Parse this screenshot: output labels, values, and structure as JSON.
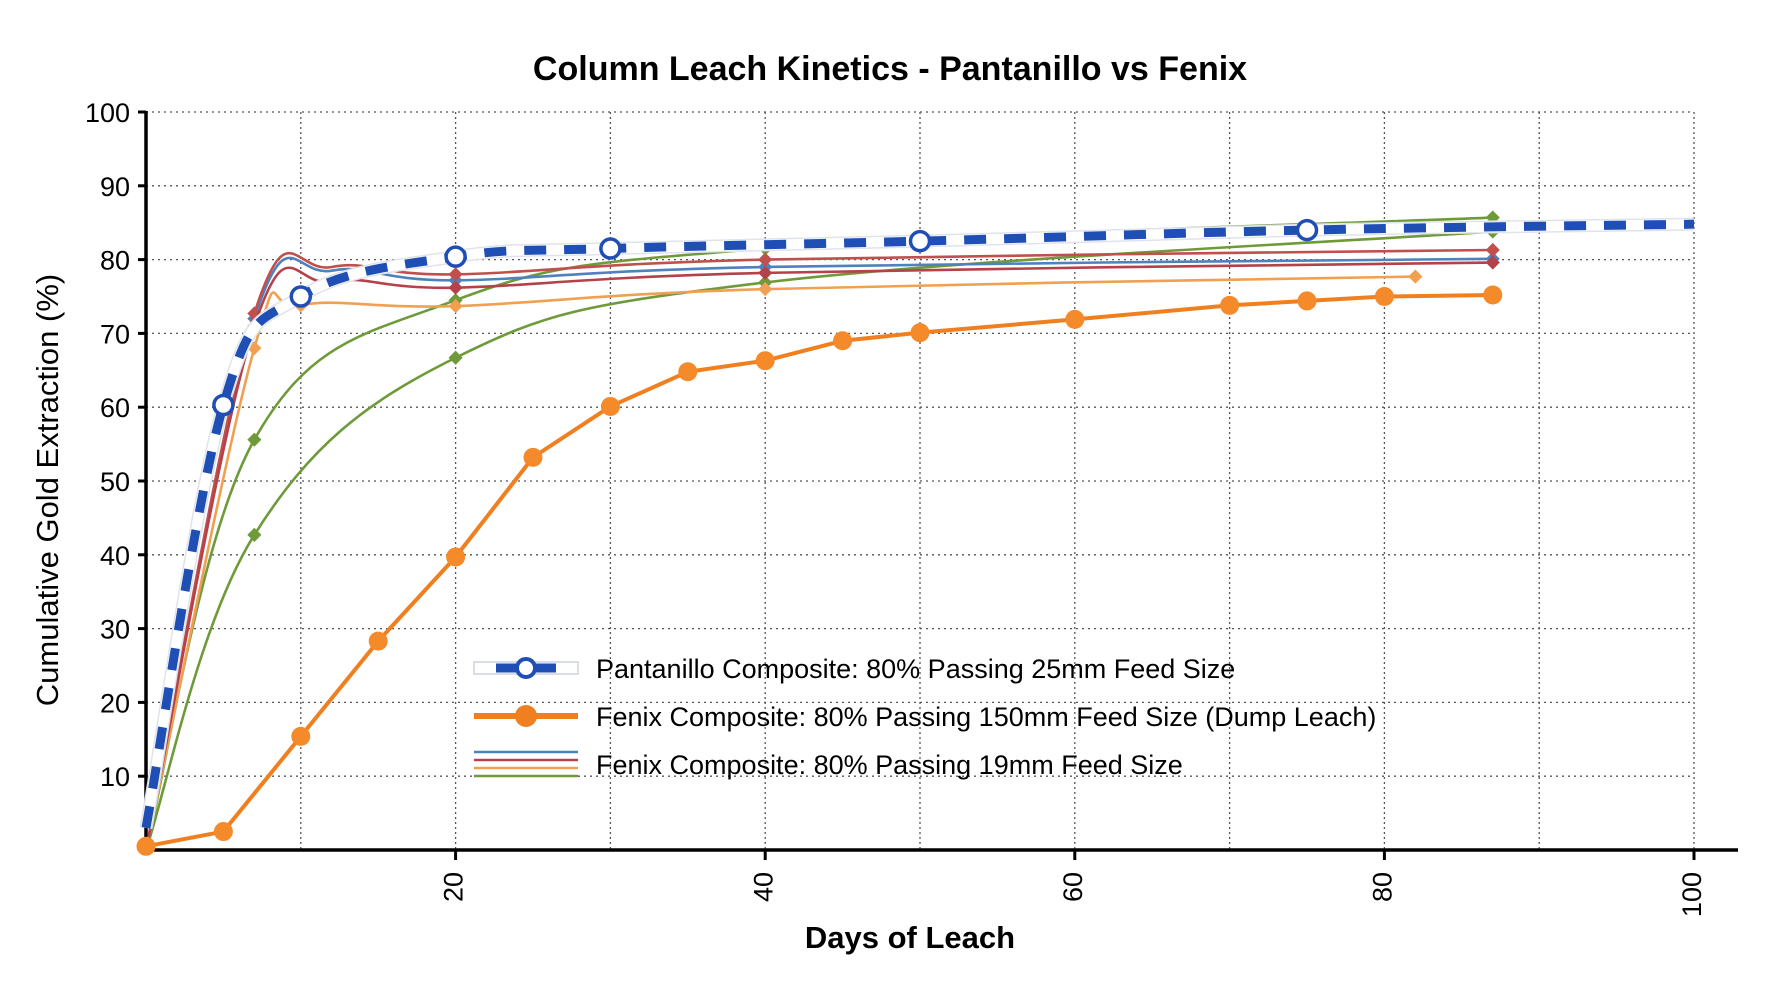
{
  "chart_data": {
    "type": "line",
    "title": "Column Leach Kinetics - Pantanillo vs Fenix",
    "xlabel": "Days of Leach",
    "ylabel": "Cumulative Gold Extraction (%)",
    "xlim": [
      0,
      100
    ],
    "ylim": [
      0,
      100
    ],
    "xticks": [
      20,
      40,
      60,
      80,
      100
    ],
    "yticks": [
      10,
      20,
      30,
      40,
      50,
      60,
      70,
      80,
      90,
      100
    ],
    "x_gridlines": [
      10,
      20,
      30,
      40,
      50,
      60,
      70,
      80,
      90,
      100
    ],
    "grid": true,
    "legend_position": "bottom-center",
    "series": [
      {
        "name": "Fenix Composite: 80% Passing 19mm Feed Size",
        "id": "fenix-19mm-green-a",
        "color": "#6f9a3a",
        "style": "thin",
        "x": [
          0,
          7,
          20,
          40,
          87
        ],
        "y": [
          0,
          55.6,
          74.5,
          81.5,
          85.7
        ]
      },
      {
        "name": "Fenix Composite: 80% Passing 19mm Feed Size",
        "id": "fenix-19mm-green-b",
        "color": "#6f9a3a",
        "style": "thin",
        "x": [
          0,
          7,
          20,
          40,
          87
        ],
        "y": [
          0,
          42.7,
          66.7,
          76.9,
          83.8
        ]
      },
      {
        "name": "Fenix Composite: 80% Passing 19mm Feed Size",
        "id": "fenix-19mm-orange",
        "color": "#f0a050",
        "style": "thin",
        "x": [
          0,
          7,
          10,
          20,
          40,
          82
        ],
        "y": [
          0,
          68,
          73.8,
          73.7,
          76,
          77.7
        ]
      },
      {
        "name": "Fenix Composite: 80% Passing 19mm Feed Size",
        "id": "fenix-19mm-blue",
        "color": "#4f81bd",
        "style": "thin",
        "x": [
          0,
          7,
          12,
          20,
          40,
          87
        ],
        "y": [
          0,
          72,
          78.5,
          77.2,
          79,
          80.1
        ]
      },
      {
        "name": "Fenix Composite: 80% Passing 19mm Feed Size",
        "id": "fenix-19mm-red-a",
        "color": "#c0504d",
        "style": "thin",
        "x": [
          0,
          7,
          12,
          20,
          40,
          87
        ],
        "y": [
          0,
          72.7,
          79,
          78,
          80,
          81.3
        ]
      },
      {
        "name": "Fenix Composite: 80% Passing 19mm Feed Size",
        "id": "fenix-19mm-red-b",
        "color": "#b5424a",
        "style": "thin",
        "x": [
          0,
          7,
          12,
          20,
          40,
          87
        ],
        "y": [
          0,
          71,
          77,
          76.2,
          78.2,
          79.6
        ]
      },
      {
        "name": "Fenix Composite: 80% Passing 150mm Feed Size (Dump Leach)",
        "id": "fenix-150mm",
        "color": "#f07f20",
        "style": "thick-markers",
        "x": [
          0,
          5,
          10,
          15,
          20,
          25,
          30,
          35,
          40,
          45,
          50,
          60,
          70,
          75,
          80,
          87
        ],
        "y": [
          0.5,
          2.5,
          15.4,
          28.3,
          39.7,
          53.2,
          60.1,
          64.8,
          66.3,
          69,
          70.1,
          71.9,
          73.8,
          74.4,
          75,
          75.2
        ]
      },
      {
        "name": "Pantanillo Composite: 80% Passing 25mm Feed Size",
        "id": "pantanillo-25mm",
        "color": "#1f4eb4",
        "style": "dashed-open-circles",
        "x": [
          0,
          5,
          10,
          20,
          30,
          50,
          75,
          100
        ],
        "y": [
          3,
          60.3,
          75,
          80.4,
          81.5,
          82.5,
          84,
          84.8
        ],
        "marker_x": [
          5,
          10,
          20,
          30,
          50,
          75
        ]
      }
    ],
    "legend": [
      {
        "label": "Pantanillo Composite: 80% Passing 25mm Feed Size",
        "swatch": "dashed-open-circle",
        "color": "#1f4eb4"
      },
      {
        "label": "Fenix Composite: 80% Passing 150mm Feed Size (Dump Leach)",
        "swatch": "line-filled-circle",
        "color": "#f07f20"
      },
      {
        "label": "Fenix Composite: 80% Passing 19mm Feed Size",
        "swatch": "multi-line",
        "colors": [
          "#4f81bd",
          "#b5424a",
          "#f0a050",
          "#6f9a3a"
        ]
      }
    ]
  }
}
